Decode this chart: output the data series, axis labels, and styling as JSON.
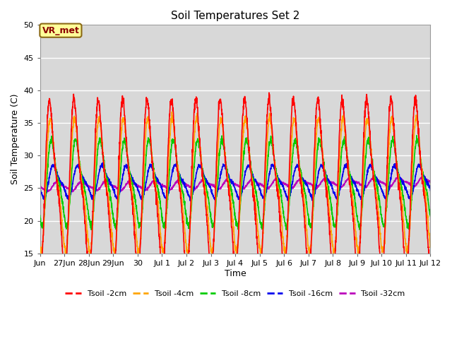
{
  "title": "Soil Temperatures Set 2",
  "xlabel": "Time",
  "ylabel": "Soil Temperature (C)",
  "ylim": [
    15,
    50
  ],
  "yticks": [
    15,
    20,
    25,
    30,
    35,
    40,
    45,
    50
  ],
  "plot_bg_color": "#d8d8d8",
  "fig_bg_color": "#ffffff",
  "annotation_text": "VR_met",
  "annotation_color": "#8B0000",
  "annotation_bg": "#FFFF99",
  "annotation_edge": "#8B6914",
  "lines": {
    "Tsoil -2cm": {
      "color": "#FF0000",
      "lw": 1.5
    },
    "Tsoil -4cm": {
      "color": "#FFA500",
      "lw": 1.5
    },
    "Tsoil -8cm": {
      "color": "#00CC00",
      "lw": 1.5
    },
    "Tsoil -16cm": {
      "color": "#0000EE",
      "lw": 1.5
    },
    "Tsoil -32cm": {
      "color": "#BB00BB",
      "lw": 1.5
    }
  },
  "n_days": 16,
  "pts_per_day": 144,
  "xtick_labels": [
    "Jun",
    "27Jun",
    "28Jun",
    "29Jun",
    "30",
    "Jul 1",
    "Jul 2",
    "Jul 3",
    "Jul 4",
    "Jul 5",
    "Jul 6",
    "Jul 7",
    "Jul 8",
    "Jul 9",
    "Jul 10",
    "Jul 11",
    "Jul 12"
  ],
  "xtick_positions": [
    0,
    1,
    2,
    3,
    4,
    5,
    6,
    7,
    8,
    9,
    10,
    11,
    12,
    13,
    14,
    15,
    16
  ]
}
